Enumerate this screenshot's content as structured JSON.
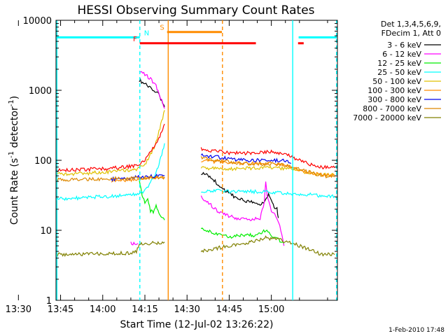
{
  "chart_data": {
    "type": "line",
    "title": "HESSI Observing Summary Count Rates",
    "xlabel": "Start Time (12-Jul-02 13:26:22)",
    "ylabel_main": "Count Rate (s",
    "ylabel_sup1": "-1",
    "ylabel_mid": " detector",
    "ylabel_sup2": "-1",
    "ylabel_end": ")",
    "footer": "1-Feb-2010 17:48",
    "yscale": "log",
    "xlim_minutes": [
      13.37,
      113.5
    ],
    "ylim": [
      1,
      10000
    ],
    "x_ticks": [
      {
        "label": "13:30",
        "min": 0
      },
      {
        "label": "13:45",
        "min": 15
      },
      {
        "label": "14:00",
        "min": 30
      },
      {
        "label": "14:15",
        "min": 45
      },
      {
        "label": "14:30",
        "min": 60
      },
      {
        "label": "14:45",
        "min": 75
      },
      {
        "label": "15:00",
        "min": 90
      }
    ],
    "y_ticks": [
      {
        "label": "1",
        "value": 1
      },
      {
        "label": "10",
        "value": 10
      },
      {
        "label": "100",
        "value": 100
      },
      {
        "label": "1000",
        "value": 1000
      },
      {
        "label": "10000",
        "value": 10000
      }
    ],
    "legend_header": [
      "Det 1,3,4,5,6,9,",
      "FDecim 1, Att 0"
    ],
    "legend_position": "top-right, outside plot",
    "series": [
      {
        "name": "3 - 6 keV",
        "color": "#000000",
        "segments": [
          [
            [
              43,
              1400
            ],
            [
              45,
              1230
            ],
            [
              47,
              1090
            ],
            [
              49,
              960
            ],
            [
              50,
              850
            ],
            [
              51,
              720
            ],
            [
              52,
              580
            ]
          ],
          [
            [
              65,
              65
            ],
            [
              67,
              62
            ],
            [
              70,
              50
            ],
            [
              72,
              42
            ],
            [
              74,
              36
            ],
            [
              77,
              30
            ],
            [
              80,
              27
            ],
            [
              84,
              25
            ],
            [
              86,
              24
            ],
            [
              88,
              27
            ],
            [
              89,
              32
            ],
            [
              90,
              26
            ],
            [
              91,
              22
            ],
            [
              92,
              20
            ],
            [
              92.5,
              15
            ]
          ]
        ]
      },
      {
        "name": "6 - 12 keV",
        "color": "#ff00ff",
        "segments": [
          [
            [
              40,
              6.5
            ],
            [
              42.5,
              6.5
            ]
          ],
          [
            [
              43,
              1900
            ],
            [
              45,
              1700
            ],
            [
              47,
              1450
            ],
            [
              49,
              1150
            ],
            [
              50,
              900
            ],
            [
              51,
              740
            ],
            [
              52,
              550
            ]
          ],
          [
            [
              65,
              30
            ],
            [
              67,
              26
            ],
            [
              70,
              20
            ],
            [
              73,
              17
            ],
            [
              77,
              15
            ],
            [
              80,
              14.5
            ],
            [
              84,
              14.5
            ],
            [
              86,
              15
            ],
            [
              87.5,
              24
            ],
            [
              88,
              50
            ],
            [
              88.5,
              30
            ],
            [
              90,
              19
            ],
            [
              92,
              15
            ],
            [
              93,
              12
            ],
            [
              94.5,
              6
            ]
          ]
        ]
      },
      {
        "name": "12 - 25 keV",
        "color": "#00ee00",
        "segments": [
          [
            [
              43,
              50
            ],
            [
              44,
              32
            ],
            [
              45,
              25
            ],
            [
              46,
              29
            ],
            [
              47,
              19
            ],
            [
              48,
              18
            ],
            [
              49,
              23
            ],
            [
              50,
              17
            ],
            [
              52,
              14
            ]
          ],
          [
            [
              65,
              10.5
            ],
            [
              70,
              9
            ],
            [
              75,
              8
            ],
            [
              80,
              8.5
            ],
            [
              84,
              8.5
            ],
            [
              88,
              9.8
            ],
            [
              90,
              8.5
            ],
            [
              92,
              7.5
            ],
            [
              94.5,
              6.5
            ]
          ]
        ]
      },
      {
        "name": "25 - 50 keV",
        "color": "#00ffff",
        "segments": [
          [
            [
              13.5,
              28
            ],
            [
              18,
              28.5
            ],
            [
              23,
              29
            ],
            [
              28,
              30
            ],
            [
              33,
              30.5
            ],
            [
              38,
              32
            ],
            [
              42,
              33
            ],
            [
              45,
              37
            ],
            [
              47,
              48
            ],
            [
              49,
              68
            ],
            [
              50,
              90
            ],
            [
              51,
              120
            ],
            [
              52,
              175
            ]
          ],
          [
            [
              65,
              36
            ],
            [
              70,
              37
            ],
            [
              75,
              36
            ],
            [
              80,
              36
            ],
            [
              85,
              35.5
            ],
            [
              90,
              35
            ],
            [
              95,
              34
            ],
            [
              100,
              33
            ],
            [
              105,
              32
            ],
            [
              108,
              31
            ],
            [
              112.5,
              31
            ]
          ]
        ]
      },
      {
        "name": "50 - 100 keV",
        "color": "#e0c000",
        "segments": [
          [
            [
              13.5,
              63
            ],
            [
              18,
              64
            ],
            [
              23,
              65
            ],
            [
              28,
              67
            ],
            [
              33,
              69
            ],
            [
              38,
              72
            ],
            [
              42,
              75
            ],
            [
              45,
              88
            ],
            [
              47,
              120
            ],
            [
              49,
              180
            ],
            [
              50,
              260
            ],
            [
              51,
              360
            ],
            [
              52,
              520
            ]
          ],
          [
            [
              65,
              78
            ],
            [
              70,
              76
            ],
            [
              75,
              75
            ],
            [
              80,
              76
            ],
            [
              85,
              78
            ],
            [
              90,
              78
            ],
            [
              95,
              76
            ],
            [
              100,
              70
            ],
            [
              105,
              65
            ],
            [
              108,
              62
            ],
            [
              112.5,
              62
            ]
          ]
        ]
      },
      {
        "name": "100 - 300 keV",
        "color": "#ff8c00",
        "segments": [
          [
            [
              33,
              51
            ],
            [
              38,
              52
            ],
            [
              42,
              54
            ],
            [
              45,
              55
            ],
            [
              48,
              56
            ],
            [
              50,
              56
            ],
            [
              52,
              58
            ]
          ],
          [
            [
              65,
              100
            ],
            [
              70,
              96
            ],
            [
              75,
              92
            ],
            [
              80,
              90
            ],
            [
              85,
              90
            ],
            [
              90,
              90
            ],
            [
              95,
              85
            ],
            [
              100,
              72
            ],
            [
              105,
              65
            ],
            [
              108,
              62
            ],
            [
              112.5,
              60
            ]
          ]
        ]
      },
      {
        "name": "300 - 800 keV",
        "color": "#0000ee",
        "segments": [
          [
            [
              33,
              54
            ],
            [
              38,
              55
            ],
            [
              42,
              57
            ],
            [
              45,
              58
            ],
            [
              48,
              59
            ],
            [
              50,
              60
            ],
            [
              52,
              61
            ]
          ],
          [
            [
              65,
              118
            ],
            [
              70,
              112
            ],
            [
              75,
              105
            ],
            [
              80,
              100
            ],
            [
              85,
              100
            ],
            [
              90,
              100
            ],
            [
              95,
              98
            ],
            [
              97,
              90
            ]
          ]
        ]
      },
      {
        "name": "800 - 7000 keV",
        "color": "#dd8800",
        "segments": [
          [
            [
              13.5,
              53
            ],
            [
              18,
              53
            ],
            [
              23,
              54
            ],
            [
              28,
              54
            ],
            [
              33,
              55
            ],
            [
              38,
              55
            ],
            [
              42,
              56
            ],
            [
              45,
              56
            ],
            [
              48,
              57
            ],
            [
              52,
              57
            ]
          ],
          [
            [
              65,
              110
            ],
            [
              70,
              100
            ],
            [
              75,
              95
            ],
            [
              80,
              90
            ],
            [
              85,
              88
            ],
            [
              90,
              88
            ],
            [
              95,
              85
            ],
            [
              100,
              75
            ],
            [
              105,
              65
            ],
            [
              108,
              60
            ],
            [
              112.5,
              58
            ]
          ]
        ]
      },
      {
        "name": "7000 - 20000 keV",
        "color": "#808000",
        "segments": [
          [
            [
              13.5,
              4.5
            ],
            [
              20,
              4.5
            ],
            [
              25,
              4.6
            ],
            [
              30,
              4.6
            ],
            [
              35,
              4.7
            ],
            [
              40,
              4.7
            ],
            [
              42,
              5
            ],
            [
              43,
              6.3
            ],
            [
              47,
              6.5
            ],
            [
              52,
              6.8
            ]
          ],
          [
            [
              65,
              5
            ],
            [
              70,
              5.5
            ],
            [
              75,
              6
            ],
            [
              80,
              6.5
            ],
            [
              84,
              7
            ],
            [
              88,
              7.8
            ],
            [
              92,
              7.5
            ],
            [
              95,
              7
            ],
            [
              100,
              6
            ],
            [
              105,
              5
            ],
            [
              108,
              4.5
            ],
            [
              112.5,
              4.5
            ]
          ]
        ]
      },
      {
        "name": "",
        "color": "#ff0000",
        "segments": [
          [
            [
              13.5,
              72
            ],
            [
              18,
              73
            ],
            [
              23,
              74
            ],
            [
              28,
              75
            ],
            [
              33,
              77
            ],
            [
              38,
              80
            ],
            [
              42,
              84
            ],
            [
              45,
              100
            ],
            [
              47,
              130
            ],
            [
              49,
              170
            ],
            [
              50,
              210
            ],
            [
              51,
              260
            ],
            [
              52,
              330
            ]
          ],
          [
            [
              65,
              145
            ],
            [
              70,
              135
            ],
            [
              75,
              128
            ],
            [
              80,
              125
            ],
            [
              85,
              128
            ],
            [
              90,
              132
            ],
            [
              95,
              122
            ],
            [
              100,
              100
            ],
            [
              105,
              85
            ],
            [
              108,
              80
            ],
            [
              112.5,
              78
            ]
          ]
        ]
      }
    ],
    "bars": [
      {
        "label": "N",
        "color": "#00ffff",
        "y": 5700,
        "spans": [
          [
            13.6,
            43.2
          ],
          [
            99.7,
            113.3
          ]
        ]
      },
      {
        "label": "S",
        "color": "#ff8c00",
        "y": 6800,
        "spans": [
          [
            52.9,
            72.4
          ]
        ]
      },
      {
        "label": "F",
        "color": "#ff0000",
        "y": 4700,
        "spans": [
          [
            43.2,
            84.5
          ],
          [
            99.5,
            101.5
          ]
        ]
      }
    ],
    "vlines": [
      {
        "min": 13.7,
        "color": "#00ffff",
        "dash": false
      },
      {
        "min": 43.2,
        "color": "#00ffff",
        "dash": true
      },
      {
        "min": 53.3,
        "color": "#ff8c00",
        "dash": false
      },
      {
        "min": 72.6,
        "color": "#ff8c00",
        "dash": true
      },
      {
        "min": 97.6,
        "color": "#00ffff",
        "dash": false
      },
      {
        "min": 113.2,
        "color": "#00ffff",
        "dash": true
      }
    ]
  }
}
